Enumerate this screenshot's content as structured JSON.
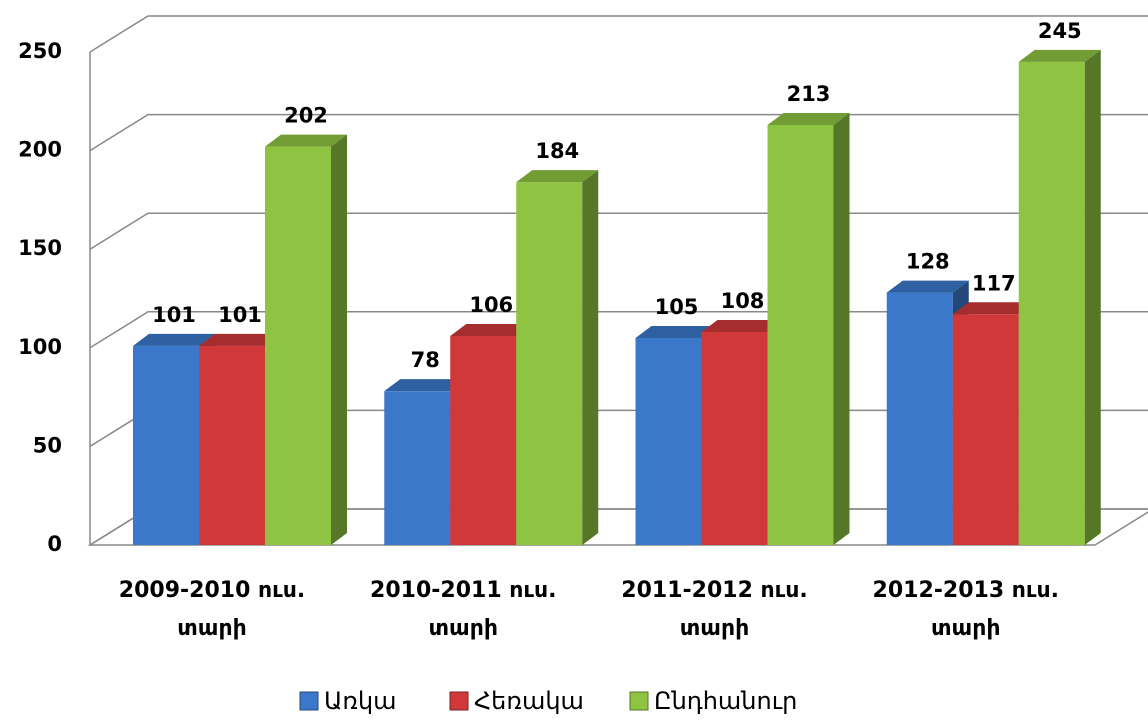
{
  "chart_data": {
    "type": "bar3d",
    "categories": [
      "2009-2010 ուս. տարի",
      "2010-2011 ուս. տարի",
      "2011-2012 ուս. տարի",
      "2012-2013 ուս. տարի"
    ],
    "series": [
      {
        "name": "Առկա",
        "color": "#3b78c9",
        "values": [
          101,
          78,
          105,
          128
        ]
      },
      {
        "name": "Հեռակա",
        "color": "#d0383a",
        "values": [
          101,
          106,
          108,
          117
        ]
      },
      {
        "name": "Ընդհանուր",
        "color": "#8fc442",
        "values": [
          202,
          184,
          213,
          245
        ]
      }
    ],
    "ylim": [
      0,
      250
    ],
    "yticks": [
      0,
      50,
      100,
      150,
      200,
      250
    ],
    "grid": true,
    "legend": "bottom"
  }
}
